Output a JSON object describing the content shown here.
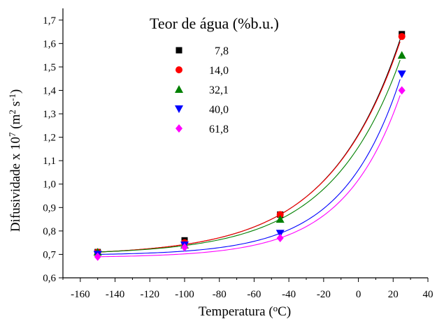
{
  "chart_data": {
    "type": "scatter",
    "xlabel": "Temperatura (°C)",
    "xlabel_parts": [
      "Temperatura (",
      "o",
      "C)"
    ],
    "ylabel": "Difusividade x 10^7 (m^2 s^-1)",
    "ylabel_parts": [
      "Difusividade x 10",
      "7",
      " (m",
      "2",
      " s",
      "-1",
      ")"
    ],
    "xlim": [
      -170,
      40
    ],
    "ylim": [
      0.6,
      1.75
    ],
    "xticks": [
      -160,
      -140,
      -120,
      -100,
      -80,
      -60,
      -40,
      -20,
      0,
      20,
      40
    ],
    "xtick_labels": [
      "-160",
      "-140",
      "-120",
      "-100",
      "-80",
      "-60",
      "-40",
      "-20",
      "0",
      "20",
      "40"
    ],
    "yticks": [
      0.6,
      0.7,
      0.8,
      0.9,
      1.0,
      1.1,
      1.2,
      1.3,
      1.4,
      1.5,
      1.6,
      1.7
    ],
    "ytick_labels": [
      "0,6",
      "0,7",
      "0,8",
      "0,9",
      "1,0",
      "1,1",
      "1,2",
      "1,3",
      "1,4",
      "1,5",
      "1,6",
      "1,7"
    ],
    "grid": false,
    "legend_title": "Teor de água (%b.u.)",
    "legend_position": "top-left",
    "x": [
      -150,
      -100,
      -45,
      25
    ],
    "series": [
      {
        "name": "7,8",
        "marker": "square",
        "color": "#000000",
        "values": [
          0.71,
          0.76,
          0.87,
          1.64
        ]
      },
      {
        "name": "14,0",
        "marker": "circle",
        "color": "#ff0000",
        "values": [
          0.71,
          0.75,
          0.87,
          1.63
        ]
      },
      {
        "name": "32,1",
        "marker": "triangle-up",
        "color": "#008000",
        "values": [
          0.71,
          0.74,
          0.85,
          1.55
        ]
      },
      {
        "name": "40,0",
        "marker": "triangle-down",
        "color": "#0000ff",
        "values": [
          0.7,
          0.74,
          0.79,
          1.47
        ]
      },
      {
        "name": "61,8",
        "marker": "diamond",
        "color": "#ff00ff",
        "values": [
          0.69,
          0.73,
          0.77,
          1.4
        ]
      }
    ]
  }
}
